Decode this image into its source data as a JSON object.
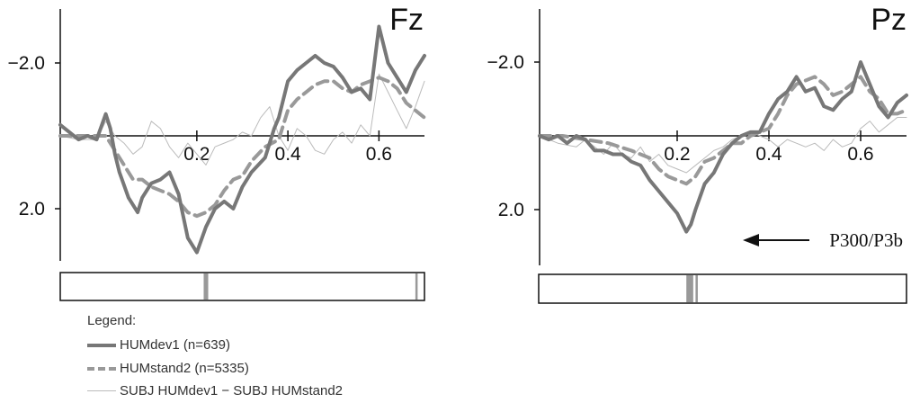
{
  "chart_data": [
    {
      "type": "line",
      "title": "Fz",
      "xlim": [
        -0.1,
        0.7
      ],
      "ylim": [
        -3.0,
        3.4
      ],
      "y_inverted": true,
      "x_ticks": [
        0.2,
        0.4,
        0.6
      ],
      "x_tick_labels": [
        "0.2",
        "0.4",
        "0.6"
      ],
      "y_ticks": [
        -2.0,
        2.0
      ],
      "y_tick_labels": [
        "−2.0",
        "2.0"
      ],
      "significance_bar": [
        [
          0.215,
          0.225
        ],
        [
          0.68,
          0.685
        ]
      ],
      "series": [
        {
          "name": "HUMdev1 (n=639)",
          "style": "thick-solid",
          "color": "#777777",
          "x": [
            -0.1,
            -0.06,
            -0.04,
            -0.02,
            0,
            0.01,
            0.02,
            0.03,
            0.05,
            0.07,
            0.08,
            0.1,
            0.12,
            0.14,
            0.16,
            0.18,
            0.2,
            0.22,
            0.24,
            0.26,
            0.28,
            0.3,
            0.32,
            0.35,
            0.37,
            0.38,
            0.4,
            0.42,
            0.44,
            0.46,
            0.48,
            0.5,
            0.52,
            0.54,
            0.56,
            0.58,
            0.6,
            0.62,
            0.64,
            0.66,
            0.68,
            0.7
          ],
          "y": [
            -0.3,
            0.1,
            0.0,
            0.1,
            -0.6,
            -0.2,
            0.5,
            1.0,
            1.7,
            2.1,
            1.7,
            1.3,
            1.2,
            1.0,
            1.6,
            2.8,
            3.2,
            2.5,
            2.0,
            1.8,
            2.0,
            1.4,
            1.0,
            0.6,
            -0.2,
            -0.5,
            -1.5,
            -1.8,
            -2.0,
            -2.2,
            -2.0,
            -1.9,
            -1.6,
            -1.2,
            -1.3,
            -1.0,
            -3.0,
            -2.0,
            -1.6,
            -1.2,
            -1.8,
            -2.2
          ]
        },
        {
          "name": "HUMstand2 (n=5335)",
          "style": "thick-dashed",
          "color": "#999999",
          "x": [
            -0.1,
            -0.05,
            0,
            0.02,
            0.04,
            0.06,
            0.08,
            0.1,
            0.12,
            0.14,
            0.16,
            0.18,
            0.2,
            0.22,
            0.24,
            0.26,
            0.28,
            0.3,
            0.32,
            0.35,
            0.38,
            0.4,
            0.42,
            0.44,
            0.46,
            0.48,
            0.5,
            0.52,
            0.54,
            0.56,
            0.58,
            0.6,
            0.62,
            0.64,
            0.66,
            0.68,
            0.7
          ],
          "y": [
            0.0,
            0.0,
            0.0,
            0.4,
            0.8,
            1.2,
            1.2,
            1.4,
            1.5,
            1.6,
            1.8,
            2.1,
            2.2,
            2.1,
            1.9,
            1.5,
            1.2,
            1.1,
            0.7,
            0.3,
            0.1,
            -0.7,
            -1.0,
            -1.2,
            -1.4,
            -1.5,
            -1.5,
            -1.3,
            -1.2,
            -1.4,
            -1.5,
            -1.6,
            -1.5,
            -1.3,
            -0.9,
            -0.7,
            -0.5
          ]
        },
        {
          "name": "SUBJ HUMdev1 − SUBJ HUMstand2",
          "style": "thin-solid",
          "color": "#bbbbbb",
          "x": [
            -0.1,
            -0.06,
            -0.02,
            0,
            0.02,
            0.04,
            0.06,
            0.08,
            0.1,
            0.12,
            0.14,
            0.16,
            0.18,
            0.2,
            0.22,
            0.24,
            0.26,
            0.28,
            0.3,
            0.32,
            0.34,
            0.36,
            0.38,
            0.4,
            0.42,
            0.44,
            0.46,
            0.48,
            0.5,
            0.52,
            0.54,
            0.56,
            0.58,
            0.6,
            0.62,
            0.64,
            0.66,
            0.68,
            0.7
          ],
          "y": [
            0.0,
            0.1,
            0.1,
            -0.4,
            0.0,
            0.2,
            0.5,
            0.3,
            -0.4,
            -0.2,
            0.3,
            0.6,
            0.2,
            0.5,
            0.8,
            0.3,
            0.2,
            0.1,
            -0.1,
            0.0,
            -0.5,
            -0.8,
            0.0,
            0.4,
            -0.2,
            0.0,
            0.4,
            0.5,
            0.1,
            -0.1,
            0.2,
            -0.3,
            0.0,
            -1.7,
            -1.2,
            -0.7,
            -0.2,
            -0.8,
            -1.5
          ]
        }
      ]
    },
    {
      "type": "line",
      "title": "Pz",
      "xlim": [
        -0.1,
        0.7
      ],
      "ylim": [
        -3.0,
        3.4
      ],
      "y_inverted": true,
      "x_ticks": [
        0.2,
        0.4,
        0.6
      ],
      "x_tick_labels": [
        "0.2",
        "0.4",
        "0.6"
      ],
      "y_ticks": [
        -2.0,
        2.0
      ],
      "y_tick_labels": [
        "−2.0",
        "2.0"
      ],
      "significance_bar": [
        [
          0.22,
          0.235
        ],
        [
          0.24,
          0.245
        ]
      ],
      "annotation": "P300/P3b",
      "series": [
        {
          "name": "HUMdev1 (n=639)",
          "style": "thick-solid",
          "color": "#777777",
          "x": [
            -0.1,
            -0.08,
            -0.06,
            -0.04,
            -0.02,
            0,
            0.02,
            0.04,
            0.06,
            0.08,
            0.1,
            0.12,
            0.14,
            0.16,
            0.18,
            0.2,
            0.22,
            0.23,
            0.24,
            0.26,
            0.28,
            0.3,
            0.32,
            0.34,
            0.36,
            0.38,
            0.4,
            0.42,
            0.44,
            0.46,
            0.48,
            0.5,
            0.52,
            0.54,
            0.56,
            0.58,
            0.6,
            0.62,
            0.64,
            0.66,
            0.68,
            0.7
          ],
          "y": [
            0.0,
            0.1,
            0.0,
            0.2,
            0.0,
            0.1,
            0.4,
            0.4,
            0.5,
            0.5,
            0.7,
            0.8,
            1.2,
            1.5,
            1.8,
            2.1,
            2.6,
            2.4,
            2.0,
            1.3,
            1.0,
            0.5,
            0.2,
            0.0,
            -0.1,
            -0.1,
            -0.6,
            -1.0,
            -1.2,
            -1.6,
            -1.2,
            -1.3,
            -0.8,
            -0.7,
            -1.0,
            -1.2,
            -2.0,
            -1.4,
            -0.8,
            -0.5,
            -0.9,
            -1.1
          ]
        },
        {
          "name": "HUMstand2 (n=5335)",
          "style": "thick-dashed",
          "color": "#999999",
          "x": [
            -0.1,
            -0.05,
            0,
            0.05,
            0.1,
            0.14,
            0.16,
            0.18,
            0.2,
            0.22,
            0.24,
            0.26,
            0.28,
            0.3,
            0.32,
            0.34,
            0.36,
            0.38,
            0.4,
            0.42,
            0.44,
            0.46,
            0.48,
            0.5,
            0.52,
            0.54,
            0.56,
            0.58,
            0.6,
            0.62,
            0.64,
            0.66,
            0.68,
            0.7
          ],
          "y": [
            0.0,
            0.0,
            0.1,
            0.2,
            0.4,
            0.6,
            0.9,
            1.1,
            1.2,
            1.3,
            1.1,
            0.7,
            0.6,
            0.4,
            0.2,
            0.2,
            0.0,
            -0.1,
            -0.2,
            -0.6,
            -1.1,
            -1.4,
            -1.5,
            -1.6,
            -1.4,
            -1.1,
            -1.2,
            -1.4,
            -1.6,
            -1.2,
            -1.0,
            -0.6,
            -0.6,
            -0.7
          ]
        },
        {
          "name": "SUBJ HUMdev1 − SUBJ HUMstand2",
          "style": "thin-solid",
          "color": "#bbbbbb",
          "x": [
            -0.1,
            -0.06,
            -0.02,
            0,
            0.02,
            0.04,
            0.06,
            0.08,
            0.1,
            0.12,
            0.14,
            0.16,
            0.18,
            0.2,
            0.22,
            0.24,
            0.26,
            0.28,
            0.3,
            0.32,
            0.34,
            0.36,
            0.38,
            0.4,
            0.42,
            0.44,
            0.46,
            0.48,
            0.5,
            0.52,
            0.54,
            0.56,
            0.58,
            0.6,
            0.62,
            0.64,
            0.66,
            0.68,
            0.7
          ],
          "y": [
            0.0,
            0.2,
            0.3,
            0.1,
            0.3,
            0.5,
            0.2,
            0.5,
            0.6,
            0.3,
            0.7,
            0.5,
            0.8,
            0.9,
            1.0,
            0.8,
            0.6,
            0.4,
            0.3,
            0.1,
            0.0,
            -0.1,
            0.0,
            0.1,
            0.3,
            0.1,
            0.2,
            0.3,
            0.2,
            0.4,
            0.1,
            0.3,
            0.2,
            -0.2,
            -0.4,
            -0.1,
            -0.3,
            -0.5,
            -0.5
          ]
        }
      ]
    }
  ],
  "legend": {
    "title": "Legend:",
    "items": [
      {
        "label": "HUMdev1 (n=639)",
        "style": "thick-solid",
        "color": "#777777"
      },
      {
        "label": "HUMstand2 (n=5335)",
        "style": "thick-dashed",
        "color": "#999999"
      },
      {
        "label": "SUBJ HUMdev1 − SUBJ HUMstand2",
        "style": "thin-solid",
        "color": "#bbbbbb"
      }
    ]
  }
}
